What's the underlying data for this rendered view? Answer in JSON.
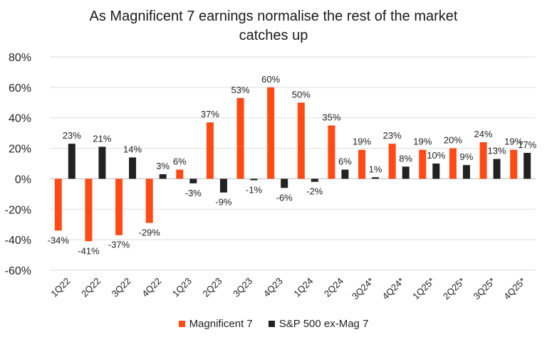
{
  "chart_data": {
    "type": "bar",
    "title_lines": [
      "As Magnificent 7 earnings normalise the rest of the market",
      "catches up"
    ],
    "categories": [
      "1Q22",
      "2Q22",
      "3Q22",
      "4Q22",
      "1Q23",
      "2Q23",
      "3Q23",
      "4Q23",
      "1Q24",
      "2Q24",
      "3Q24*",
      "4Q24*",
      "1Q25*",
      "2Q25*",
      "3Q25*",
      "4Q25*"
    ],
    "series": [
      {
        "name": "Magnificent 7",
        "color": "#ff4a14",
        "values": [
          -34,
          -41,
          -37,
          -29,
          6,
          37,
          53,
          60,
          50,
          35,
          19,
          23,
          19,
          20,
          24,
          19
        ],
        "labels": [
          "-34%",
          "-41%",
          "-37%",
          "-29%",
          "6%",
          "37%",
          "53%",
          "60%",
          "50%",
          "35%",
          "19%",
          "23%",
          "19%",
          "20%",
          "24%",
          "19%"
        ]
      },
      {
        "name": "S&P 500 ex-Mag 7",
        "color": "#222222",
        "values": [
          23,
          21,
          14,
          3,
          -3,
          -9,
          -1,
          -6,
          -2,
          6,
          1,
          8,
          10,
          9,
          13,
          17
        ],
        "labels": [
          "23%",
          "21%",
          "14%",
          "3%",
          "-3%",
          "-9%",
          "-1%",
          "-6%",
          "-2%",
          "6%",
          "1%",
          "8%",
          "10%",
          "9%",
          "13%",
          "17%"
        ]
      }
    ],
    "ylim": [
      -60,
      80
    ],
    "yticks": [
      -60,
      -40,
      -20,
      0,
      20,
      40,
      60,
      80
    ],
    "ytick_labels": [
      "-60%",
      "-40%",
      "-20%",
      "0%",
      "20%",
      "40%",
      "60%",
      "80%"
    ],
    "grid": true,
    "legend_position": "bottom"
  }
}
